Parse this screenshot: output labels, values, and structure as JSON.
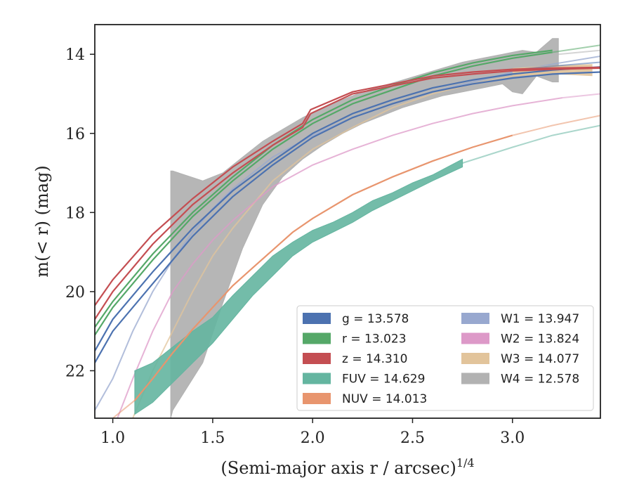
{
  "chart_data": {
    "type": "line",
    "xlabel": "(Semi-major axis r / arcsec)",
    "xlabel_sup": "1/4",
    "ylabel": "m(< r) (mag)",
    "xlim": [
      0.91,
      3.44
    ],
    "ylim": [
      23.2,
      13.25
    ],
    "y_inverted": true,
    "x_ticks": [
      1.0,
      1.5,
      2.0,
      2.5,
      3.0
    ],
    "x_tick_labels": [
      "1.0",
      "1.5",
      "2.0",
      "2.5",
      "3.0"
    ],
    "y_ticks": [
      14,
      16,
      18,
      20,
      22
    ],
    "y_tick_labels": [
      "14",
      "16",
      "18",
      "20",
      "22"
    ],
    "grid": false,
    "legend_position": "lower-right",
    "series": [
      {
        "key": "g",
        "legend_label": "g = 13.578",
        "color": "#4c72b0",
        "x": [
          0.91,
          1.0,
          1.2,
          1.4,
          1.6,
          1.8,
          2.0,
          2.2,
          2.4,
          2.6,
          2.8,
          3.0,
          3.2,
          3.44
        ],
        "y": [
          21.8,
          21.0,
          19.8,
          18.6,
          17.6,
          16.8,
          16.1,
          15.6,
          15.25,
          14.95,
          14.75,
          14.6,
          14.5,
          14.45
        ],
        "x2": [
          0.91,
          1.0,
          1.2,
          1.4,
          1.6,
          1.8,
          2.0,
          2.2,
          2.4,
          2.6,
          2.8,
          3.0,
          3.2,
          3.44
        ],
        "y2": [
          21.5,
          20.7,
          19.5,
          18.4,
          17.45,
          16.7,
          16.0,
          15.5,
          15.15,
          14.85,
          14.65,
          14.5,
          14.4,
          14.32
        ],
        "lo_x": [
          3.0,
          3.2,
          3.44
        ],
        "lo_y": [
          14.4,
          14.3,
          14.2
        ]
      },
      {
        "key": "r",
        "legend_label": "r = 13.023",
        "color": "#55a868",
        "x": [
          0.91,
          1.0,
          1.2,
          1.4,
          1.6,
          1.8,
          2.0,
          2.2,
          2.4,
          2.6,
          2.8,
          3.0,
          3.2
        ],
        "y": [
          21.1,
          20.4,
          19.2,
          18.1,
          17.2,
          16.4,
          15.75,
          15.25,
          14.9,
          14.55,
          14.3,
          14.1,
          13.95
        ],
        "x2": [
          0.91,
          1.0,
          1.2,
          1.4,
          1.6,
          1.8,
          2.0,
          2.2,
          2.4,
          2.6,
          2.8,
          3.0,
          3.2
        ],
        "y2": [
          20.9,
          20.25,
          19.05,
          18.0,
          17.1,
          16.3,
          15.65,
          15.15,
          14.8,
          14.47,
          14.22,
          14.03,
          13.9
        ],
        "lo_x": [
          3.2,
          3.44
        ],
        "lo_y": [
          13.95,
          13.77
        ]
      },
      {
        "key": "z",
        "legend_label": "z = 14.310",
        "color": "#c44e52",
        "x": [
          0.91,
          1.0,
          1.2,
          1.4,
          1.6,
          1.8,
          1.95,
          1.99,
          2.2,
          2.4,
          2.6,
          2.8,
          3.0,
          3.2,
          3.44
        ],
        "y": [
          20.7,
          20.0,
          18.8,
          17.8,
          17.0,
          16.3,
          15.85,
          15.5,
          15.0,
          14.8,
          14.6,
          14.5,
          14.42,
          14.38,
          14.35
        ],
        "x2": [
          0.91,
          1.0,
          1.2,
          1.4,
          1.6,
          1.8,
          1.95,
          1.99,
          2.2,
          2.4,
          2.6,
          2.8,
          3.0,
          3.2,
          3.44
        ],
        "y2": [
          20.35,
          19.7,
          18.55,
          17.65,
          16.85,
          16.2,
          15.75,
          15.4,
          14.95,
          14.75,
          14.55,
          14.45,
          14.38,
          14.35,
          14.33
        ],
        "lo_x": [],
        "lo_y": []
      },
      {
        "key": "FUV",
        "legend_label": "FUV = 14.629",
        "color": "#64b5a0",
        "band_x": [
          1.11,
          1.2,
          1.3,
          1.4,
          1.5,
          1.6,
          1.7,
          1.8,
          1.9,
          2.0,
          2.1,
          2.2,
          2.3,
          2.4,
          2.5,
          2.6,
          2.75
        ],
        "band_top": [
          22.0,
          21.8,
          21.4,
          21.0,
          20.65,
          20.1,
          19.6,
          19.1,
          18.75,
          18.45,
          18.25,
          18.0,
          17.7,
          17.5,
          17.25,
          17.05,
          16.65
        ],
        "band_bottom": [
          23.1,
          22.8,
          22.3,
          21.8,
          21.3,
          20.7,
          20.1,
          19.6,
          19.1,
          18.75,
          18.5,
          18.25,
          17.95,
          17.7,
          17.45,
          17.2,
          16.85
        ],
        "lo_x": [
          2.75,
          3.0,
          3.2,
          3.44
        ],
        "lo_y": [
          16.75,
          16.35,
          16.05,
          15.8
        ]
      },
      {
        "key": "NUV",
        "legend_label": "NUV = 14.013",
        "color": "#e8956e",
        "x": [
          1.11,
          1.2,
          1.3,
          1.4,
          1.5,
          1.6,
          1.7,
          1.8,
          1.9,
          2.0,
          2.2,
          2.4,
          2.6,
          2.8,
          3.0
        ],
        "y": [
          22.75,
          22.2,
          21.55,
          20.95,
          20.4,
          19.85,
          19.4,
          18.95,
          18.5,
          18.15,
          17.55,
          17.1,
          16.7,
          16.35,
          16.05
        ],
        "lo_x": [
          0.91,
          1.0,
          1.11
        ],
        "lo_y": [
          23.6,
          23.2,
          22.75
        ],
        "lo2_x": [
          3.0,
          3.2,
          3.44
        ],
        "lo2_y": [
          16.05,
          15.8,
          15.55
        ]
      },
      {
        "key": "W1",
        "legend_label": "W1 = 13.947",
        "color": "#98a8cf",
        "x": [
          0.91,
          1.0,
          1.1,
          1.2,
          1.3,
          1.4,
          1.5,
          1.6,
          1.8,
          2.0,
          2.2,
          2.4,
          2.6,
          2.8,
          3.0,
          3.2,
          3.44
        ],
        "y": [
          23.0,
          22.2,
          21.0,
          20.0,
          19.2,
          18.5,
          17.9,
          17.4,
          16.6,
          16.05,
          15.6,
          15.25,
          14.95,
          14.7,
          14.45,
          14.25,
          14.05
        ],
        "lo_x": [],
        "lo_y": []
      },
      {
        "key": "W2",
        "legend_label": "W2 = 13.824",
        "color": "#dd99c8",
        "x": [
          1.0,
          1.1,
          1.2,
          1.3,
          1.4,
          1.5,
          1.6,
          1.8,
          2.0,
          2.2,
          2.4,
          2.6,
          2.8,
          3.0,
          3.25
        ],
        "y": [
          23.5,
          22.2,
          21.0,
          20.0,
          19.3,
          18.7,
          18.2,
          17.35,
          16.8,
          16.4,
          16.05,
          15.75,
          15.5,
          15.3,
          15.1
        ],
        "lo_x": [
          3.25,
          3.44
        ],
        "lo_y": [
          15.1,
          15.0
        ]
      },
      {
        "key": "W3",
        "legend_label": "W3 = 14.077",
        "color": "#e2c49b",
        "x": [
          1.1,
          1.2,
          1.3,
          1.4,
          1.5,
          1.6,
          1.8,
          2.0,
          2.2,
          2.4,
          2.6,
          2.8,
          3.0,
          3.2,
          3.4
        ],
        "y": [
          23.2,
          22.0,
          21.0,
          20.0,
          19.1,
          18.4,
          17.2,
          16.4,
          15.85,
          15.35,
          15.0,
          14.75,
          14.55,
          14.45,
          14.4
        ],
        "band_x": [
          3.0,
          3.2,
          3.4
        ],
        "band_top": [
          14.35,
          14.28,
          14.25
        ],
        "band_bottom": [
          14.55,
          14.5,
          14.55
        ]
      },
      {
        "key": "W4",
        "legend_label": "W4 = 12.578",
        "color": "#b2b2b2",
        "band_x": [
          1.29,
          1.3,
          1.45,
          1.55,
          1.65,
          1.75,
          1.85,
          1.95,
          2.05,
          2.15,
          2.25,
          2.35,
          2.45,
          2.55,
          2.65,
          2.75,
          2.85,
          2.95,
          3.0,
          3.05,
          3.12,
          3.2,
          3.23
        ],
        "band_top": [
          16.95,
          16.95,
          17.2,
          17.0,
          16.6,
          16.2,
          15.9,
          15.6,
          15.35,
          15.15,
          14.95,
          14.8,
          14.65,
          14.5,
          14.35,
          14.2,
          14.1,
          14.0,
          13.95,
          13.9,
          13.95,
          13.6,
          13.6
        ],
        "band_bottom": [
          23.2,
          23.0,
          21.8,
          20.3,
          18.9,
          17.8,
          17.1,
          16.65,
          16.3,
          16.0,
          15.75,
          15.55,
          15.35,
          15.2,
          15.05,
          14.95,
          14.85,
          14.75,
          14.95,
          15.0,
          14.55,
          14.7,
          14.7
        ],
        "lo_x": [
          3.23,
          3.44
        ],
        "lo_y": [
          14.0,
          13.9
        ]
      }
    ],
    "legend_entries": [
      {
        "label": "g = 13.578",
        "color": "#4c72b0"
      },
      {
        "label": "r = 13.023",
        "color": "#55a868"
      },
      {
        "label": "z = 14.310",
        "color": "#c44e52"
      },
      {
        "label": "FUV = 14.629",
        "color": "#64b5a0"
      },
      {
        "label": "NUV = 14.013",
        "color": "#e8956e"
      },
      {
        "label": "W1 = 13.947",
        "color": "#98a8cf"
      },
      {
        "label": "W2 = 13.824",
        "color": "#dd99c8"
      },
      {
        "label": "W3 = 14.077",
        "color": "#e2c49b"
      },
      {
        "label": "W4 = 12.578",
        "color": "#b2b2b2"
      }
    ]
  }
}
